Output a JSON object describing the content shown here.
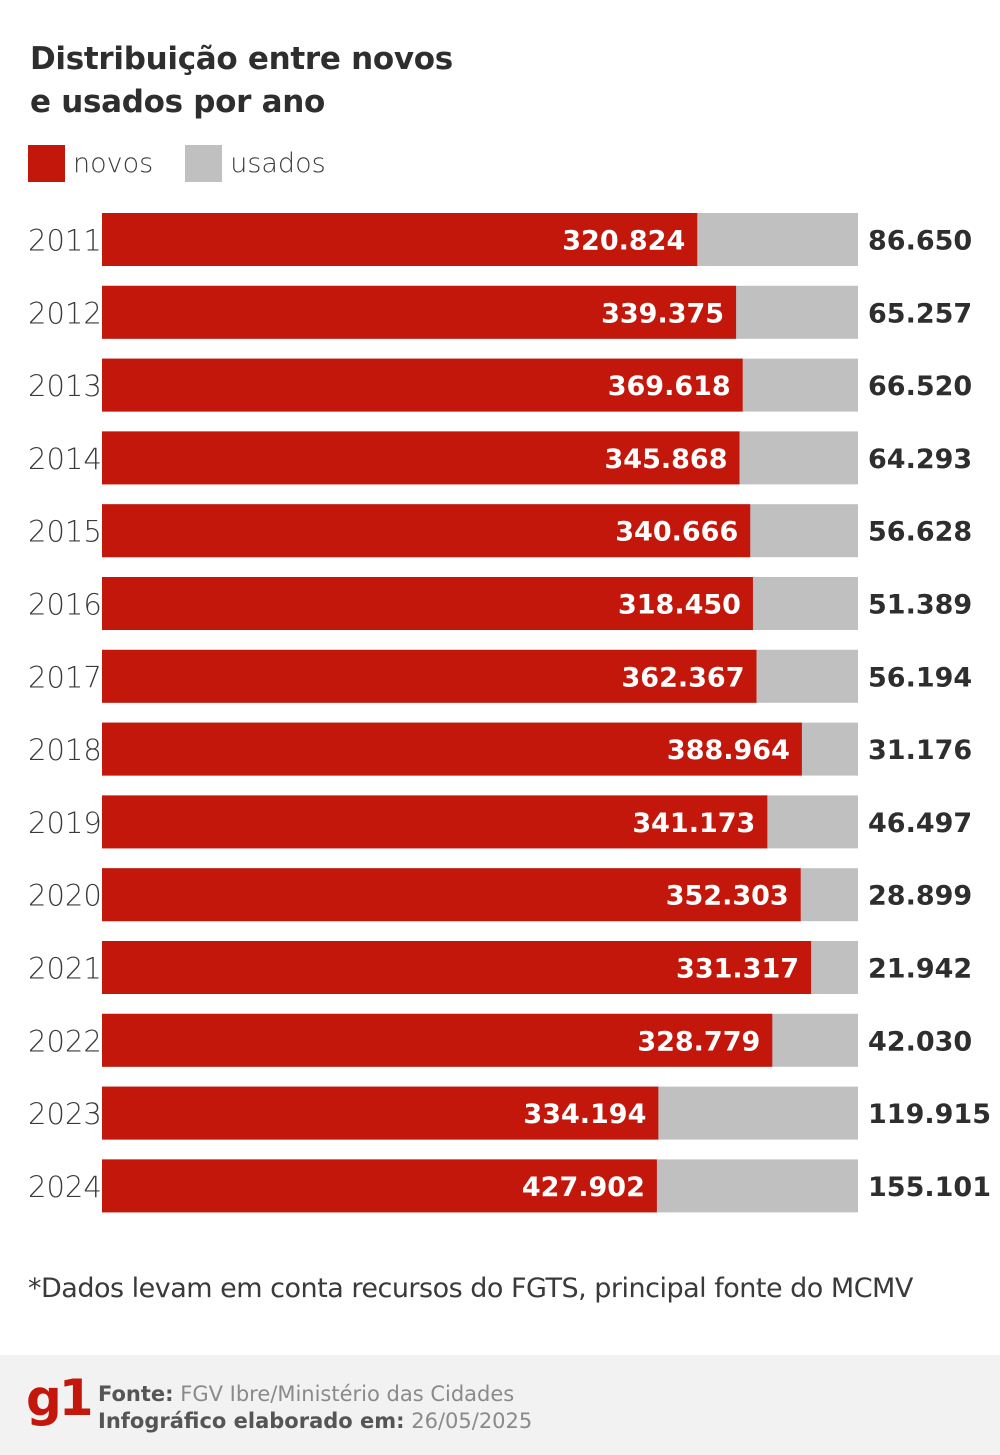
{
  "header": {
    "title_line1": "Distribuição entre novos",
    "title_line2": "e usados por ano"
  },
  "legend": {
    "novos_label": "novos",
    "usados_label": "usados"
  },
  "colors": {
    "novos": "#c4170c",
    "usados": "#c0c0c0",
    "label_dark": "#2e2e2e",
    "label_light": "#ffffff"
  },
  "chart_data": {
    "type": "bar",
    "orientation": "horizontal",
    "stacked": true,
    "normalized": true,
    "title": "Distribuição entre novos e usados por ano",
    "categories": [
      "2011",
      "2012",
      "2013",
      "2014",
      "2015",
      "2016",
      "2017",
      "2018",
      "2019",
      "2020",
      "2021",
      "2022",
      "2023",
      "2024"
    ],
    "series": [
      {
        "name": "novos",
        "values": [
          320824,
          339375,
          369618,
          345868,
          340666,
          318450,
          362367,
          388964,
          341173,
          352303,
          331317,
          328779,
          334194,
          427902
        ],
        "labels": [
          "320.824",
          "339.375",
          "369.618",
          "345.868",
          "340.666",
          "318.450",
          "362.367",
          "388.964",
          "341.173",
          "352.303",
          "331.317",
          "328.779",
          "334.194",
          "427.902"
        ]
      },
      {
        "name": "usados",
        "values": [
          86650,
          65257,
          66520,
          64293,
          56628,
          51389,
          56194,
          31176,
          46497,
          28899,
          21942,
          42030,
          119915,
          155101
        ],
        "labels": [
          "86.650",
          "65.257",
          "66.520",
          "64.293",
          "56.628",
          "51.389",
          "56.194",
          "31.176",
          "46.497",
          "28.899",
          "21.942",
          "42.030",
          "119.915",
          "155.101"
        ]
      }
    ]
  },
  "footnote": "*Dados levam em conta recursos do FGTS, principal fonte do MCMV",
  "footer": {
    "logo": "g1",
    "source_label": "Fonte:",
    "source_value": "FGV Ibre/Ministério das Cidades",
    "date_label": "Infográfico elaborado em:",
    "date_value": "26/05/2025"
  }
}
